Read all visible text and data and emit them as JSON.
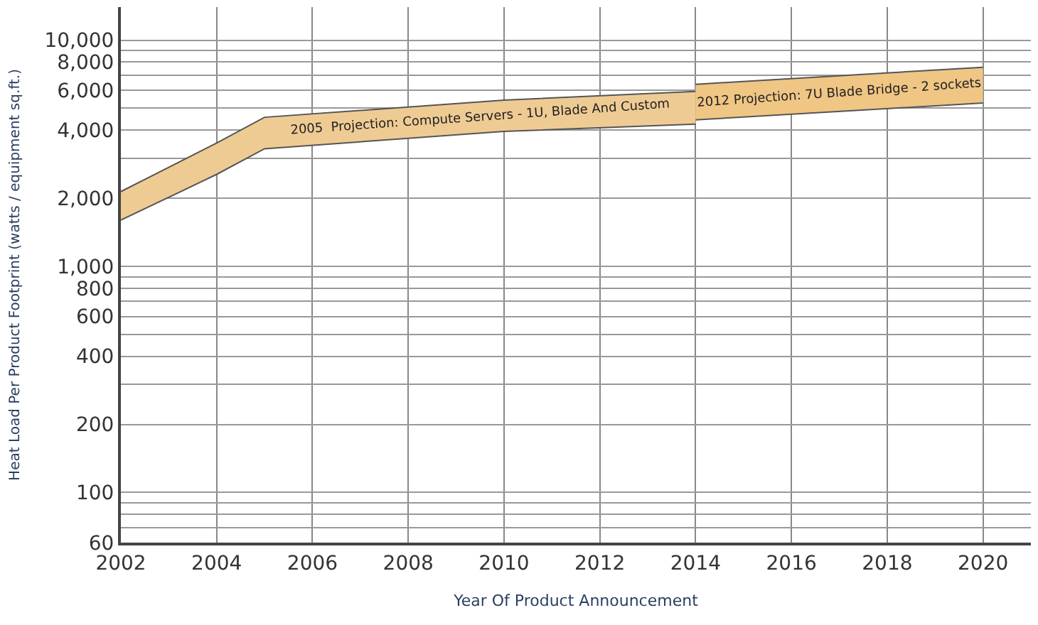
{
  "chart_data": {
    "type": "area",
    "xlabel": "Year Of Product Announcement",
    "ylabel": "Heat Load Per Product Footprint (watts / equipment sq.ft.)",
    "series": [
      {
        "type": "line",
        "color": "#555555",
        "x": [
          2002,
          2004,
          2005,
          2010,
          2014
        ],
        "values": [
          1600,
          2550,
          3310,
          3950,
          4250
        ]
      },
      {
        "color": "#efcb94",
        "x": [
          2002,
          2004,
          2005,
          2010,
          2014
        ],
        "values": [
          2140,
          3510,
          4560,
          5430,
          5930
        ]
      },
      {
        "type": "line",
        "color": "#555555",
        "x": [
          2014,
          2020
        ],
        "values": [
          4440,
          5270
        ]
      },
      {
        "color": "#f0c684",
        "x": [
          2014,
          2020
        ],
        "values": [
          6380,
          7590
        ]
      }
    ],
    "annotations": [
      "2005  Projection: Compute Servers - 1U, Blade And Custom",
      "2012 Projection: 7U Blade Bridge - 2 sockets"
    ],
    "xlim": [
      2002,
      2021
    ],
    "xticks": [
      2002,
      2004,
      2006,
      2008,
      2010,
      2012,
      2014,
      2016,
      2018,
      2020
    ],
    "log": true,
    "ylim": [
      60,
      14000
    ],
    "yticks": [
      60,
      {
        "value": 70,
        "label": null
      },
      {
        "value": 80,
        "label": null
      },
      {
        "value": 90,
        "label": null
      },
      100,
      200,
      {
        "value": 300,
        "label": null
      },
      400,
      {
        "value": 500,
        "label": null
      },
      600,
      {
        "value": 700,
        "label": null
      },
      800,
      {
        "value": 900,
        "label": null
      },
      {
        "value": 1000,
        "label": "1,000"
      },
      {
        "value": 2000,
        "label": "2,000"
      },
      {
        "value": 3000,
        "label": null
      },
      {
        "value": 4000,
        "label": "4,000"
      },
      {
        "value": 5000,
        "label": null
      },
      {
        "value": 6000,
        "label": "6,000"
      },
      {
        "value": 7000,
        "label": null
      },
      {
        "value": 8000,
        "label": "8,000"
      },
      {
        "value": 9000,
        "label": null
      },
      {
        "value": 10000,
        "label": "10,000"
      }
    ],
    "grid": true
  }
}
